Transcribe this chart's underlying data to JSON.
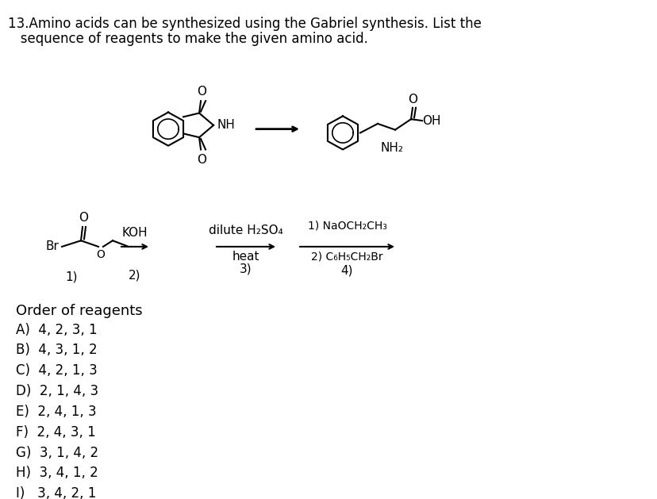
{
  "title_line1": "13.Amino acids can be synthesized using the Gabriel synthesis. List the",
  "title_line2": "   sequence of reagents to make the given amino acid.",
  "background_color": "#ffffff",
  "text_color": "#000000",
  "options_header": "Order of reagents",
  "options": [
    "A)  4, 2, 3, 1",
    "B)  4, 3, 1, 2",
    "C)  4, 2, 1, 3",
    "D)  2, 1, 4, 3",
    "E)  2, 4, 1, 3",
    "F)  2, 4, 3, 1",
    "G)  3, 1, 4, 2",
    "H)  3, 4, 1, 2",
    "I)   3, 4, 2, 1"
  ],
  "reagent_labels": [
    "1)",
    "2)",
    "3)",
    "4)"
  ],
  "reagent1_text": "KOH",
  "reagent2_text": "dilute H₂SO₄\nheat",
  "reagent3_text": "1) NaOCH₂CH₃\n2) C₆H₅CH₂Br",
  "figsize": [
    8.29,
    6.29
  ],
  "dpi": 100
}
